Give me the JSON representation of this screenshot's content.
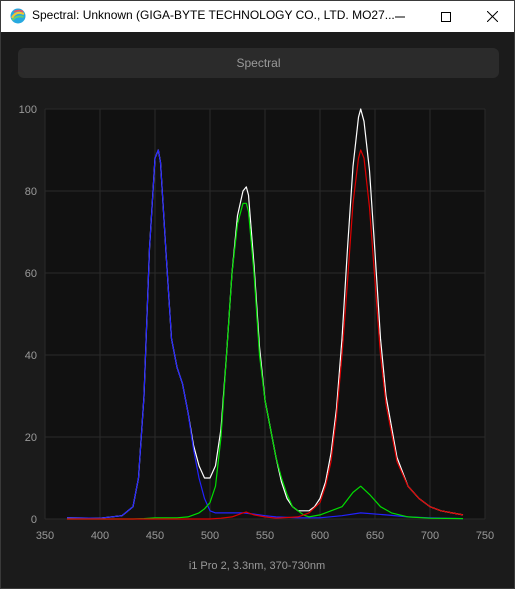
{
  "window": {
    "title": "Spectral: Unknown (GIGA-BYTE TECHNOLOGY CO., LTD. MO27...",
    "icon": "app-logo-icon"
  },
  "toolbar": {
    "spectral_label": "Spectral"
  },
  "chart_data": {
    "type": "line",
    "caption": "i1 Pro 2, 3.3nm, 370-730nm",
    "xlim": [
      350,
      750
    ],
    "ylim": [
      0,
      100
    ],
    "xticks": [
      350,
      400,
      450,
      500,
      550,
      600,
      650,
      700,
      750
    ],
    "yticks": [
      0,
      20,
      40,
      60,
      80,
      100
    ],
    "grid": true,
    "series": [
      {
        "color": "#ffffff",
        "x": [
          370,
          400,
          420,
          430,
          435,
          440,
          445,
          450,
          453,
          455,
          460,
          465,
          470,
          475,
          480,
          485,
          490,
          495,
          500,
          505,
          510,
          515,
          520,
          525,
          530,
          533,
          535,
          540,
          545,
          550,
          555,
          560,
          565,
          570,
          575,
          580,
          585,
          590,
          595,
          600,
          605,
          610,
          615,
          620,
          625,
          630,
          635,
          637,
          640,
          645,
          650,
          655,
          660,
          670,
          680,
          690,
          700,
          710,
          720,
          730
        ],
        "y": [
          0.3,
          0.2,
          0.8,
          3,
          10,
          30,
          66,
          88,
          90,
          87,
          65,
          44,
          37,
          33,
          26,
          18,
          13,
          10,
          10,
          13,
          22,
          40,
          60,
          74,
          80,
          81,
          79,
          62,
          42,
          29,
          22,
          15,
          9,
          5,
          3,
          2,
          2,
          2,
          3,
          5,
          9,
          16,
          27,
          44,
          66,
          86,
          98,
          100,
          97,
          85,
          65,
          44,
          30,
          15,
          8,
          5,
          3,
          2,
          1.5,
          1
        ]
      },
      {
        "color": "#2222ff",
        "x": [
          370,
          400,
          420,
          430,
          435,
          440,
          445,
          450,
          453,
          455,
          460,
          465,
          470,
          475,
          480,
          485,
          490,
          495,
          500,
          505,
          510,
          520,
          530,
          540,
          550,
          560,
          580,
          600,
          620,
          637,
          660,
          680,
          700,
          730
        ],
        "y": [
          0.3,
          0.2,
          0.8,
          3,
          10,
          30,
          66,
          88,
          90,
          87,
          65,
          44,
          37,
          33,
          26,
          17,
          10,
          5,
          2,
          1.5,
          1.5,
          1.5,
          1.5,
          1.2,
          0.8,
          0.5,
          0.3,
          0.3,
          0.8,
          1.5,
          1,
          0.5,
          0.3,
          0.1
        ]
      },
      {
        "color": "#00dd00",
        "x": [
          370,
          430,
          440,
          450,
          460,
          470,
          480,
          490,
          495,
          500,
          505,
          510,
          515,
          520,
          525,
          530,
          533,
          535,
          540,
          545,
          550,
          555,
          560,
          565,
          570,
          575,
          580,
          585,
          590,
          600,
          610,
          620,
          630,
          637,
          645,
          655,
          665,
          680,
          700,
          730
        ],
        "y": [
          0,
          0,
          0.1,
          0.3,
          0.3,
          0.3,
          0.5,
          1.5,
          2.5,
          4,
          8,
          20,
          40,
          60,
          72,
          77,
          77,
          75,
          60,
          40,
          29,
          22,
          15,
          10,
          6,
          3,
          2,
          1,
          0.5,
          1,
          2,
          3,
          6.5,
          8,
          6,
          3,
          1.5,
          0.5,
          0.2,
          0.1
        ]
      },
      {
        "color": "#dd0000",
        "x": [
          370,
          500,
          510,
          520,
          525,
          530,
          533,
          535,
          540,
          550,
          560,
          580,
          590,
          600,
          605,
          610,
          615,
          620,
          625,
          630,
          635,
          637,
          640,
          645,
          650,
          655,
          660,
          670,
          680,
          690,
          700,
          710,
          720,
          730
        ],
        "y": [
          0,
          0,
          0.2,
          0.5,
          1,
          1.5,
          1.7,
          1.5,
          1,
          0.5,
          0.2,
          0.5,
          1.5,
          4,
          8,
          14,
          25,
          40,
          58,
          77,
          88,
          90,
          88,
          76,
          58,
          40,
          28,
          14,
          8,
          5,
          3,
          2,
          1.5,
          1
        ]
      }
    ]
  }
}
